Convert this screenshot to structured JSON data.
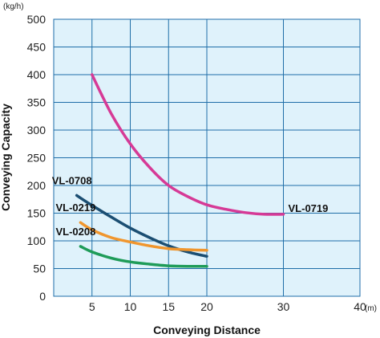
{
  "chart_data": {
    "type": "line",
    "xlabel": "Conveying Distance",
    "ylabel": "Conveying Capacity",
    "x_unit": "(m)",
    "y_unit": "(kg/h)",
    "xlim": [
      0,
      40
    ],
    "ylim": [
      0,
      500
    ],
    "x_ticks": [
      5,
      10,
      15,
      20,
      30,
      40
    ],
    "y_ticks": [
      0,
      50,
      100,
      150,
      200,
      250,
      300,
      350,
      400,
      450,
      500
    ],
    "grid": true,
    "plot_background": "#dff2fb",
    "grid_color": "#1f6ea8",
    "series": [
      {
        "name": "VL-0719",
        "color": "#d63a96",
        "x": [
          5,
          7.5,
          10,
          12.5,
          15,
          17.5,
          20,
          22.5,
          25,
          27.5,
          30
        ],
        "y": [
          400,
          330,
          275,
          233,
          200,
          180,
          165,
          157,
          151,
          148,
          148
        ]
      },
      {
        "name": "VL-0708",
        "color": "#1b4e72",
        "x": [
          3,
          5,
          7.5,
          10,
          12.5,
          15,
          17.5,
          20
        ],
        "y": [
          182,
          164,
          143,
          123,
          106,
          91,
          80,
          72
        ]
      },
      {
        "name": "VL-0219",
        "color": "#f0962e",
        "x": [
          3.5,
          5,
          7.5,
          10,
          12.5,
          15,
          17.5,
          20
        ],
        "y": [
          133,
          120,
          106,
          98,
          91,
          86,
          84,
          83
        ]
      },
      {
        "name": "VL-0208",
        "color": "#1f9c59",
        "x": [
          3.5,
          5,
          7.5,
          10,
          12.5,
          15,
          17.5,
          20
        ],
        "y": [
          90,
          80,
          69,
          62,
          58,
          55,
          54,
          54
        ]
      }
    ]
  }
}
